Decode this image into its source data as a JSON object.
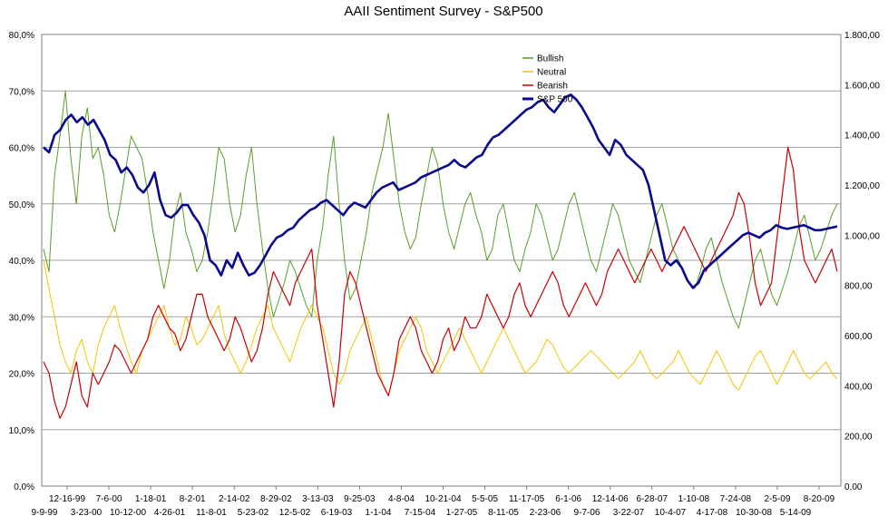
{
  "chart_data": {
    "type": "line",
    "title": "AAII Sentiment Survey - S&P500",
    "y_left": {
      "min": 0,
      "max": 80,
      "unit": "%",
      "ticks": [
        "0,0%",
        "10,0%",
        "20,0%",
        "30,0%",
        "40,0%",
        "50,0%",
        "60,0%",
        "70,0%",
        "80,0%"
      ]
    },
    "y_right": {
      "min": 0,
      "max": 1800,
      "ticks": [
        "0,00",
        "200,00",
        "400,00",
        "600,00",
        "800,00",
        "1.000,00",
        "1.200,00",
        "1.400,00",
        "1.600,00",
        "1.800,00"
      ]
    },
    "x_ticks_upper": [
      "12-16-99",
      "7-6-00",
      "1-18-01",
      "8-2-01",
      "2-14-02",
      "8-29-02",
      "3-13-03",
      "9-25-03",
      "4-8-04",
      "10-21-04",
      "5-5-05",
      "11-17-05",
      "6-1-06",
      "12-14-06",
      "6-28-07",
      "1-10-08",
      "7-24-08",
      "2-5-09",
      "8-20-09"
    ],
    "x_ticks_lower": [
      "9-9-99",
      "3-23-00",
      "10-12-00",
      "4-26-01",
      "11-8-01",
      "5-23-02",
      "12-5-02",
      "6-19-03",
      "1-1-04",
      "7-15-04",
      "1-27-05",
      "8-11-05",
      "2-23-06",
      "9-7-06",
      "3-22-07",
      "10-4-07",
      "4-17-08",
      "10-30-08",
      "5-14-09"
    ],
    "legend_position": "top-right",
    "series": [
      {
        "name": "Bullish",
        "color": "#5a9e28",
        "axis": "left",
        "width": 1,
        "values": [
          42,
          38,
          55,
          62,
          70,
          58,
          50,
          62,
          67,
          58,
          60,
          55,
          48,
          45,
          50,
          56,
          62,
          60,
          58,
          52,
          45,
          40,
          35,
          40,
          48,
          52,
          45,
          42,
          38,
          40,
          45,
          52,
          60,
          58,
          50,
          45,
          48,
          55,
          60,
          50,
          42,
          35,
          30,
          33,
          36,
          40,
          38,
          35,
          32,
          30,
          40,
          46,
          55,
          62,
          50,
          40,
          33,
          35,
          40,
          45,
          52,
          56,
          60,
          66,
          58,
          50,
          45,
          42,
          44,
          50,
          55,
          60,
          57,
          50,
          45,
          42,
          46,
          50,
          52,
          48,
          45,
          40,
          42,
          48,
          50,
          45,
          40,
          38,
          42,
          45,
          50,
          48,
          44,
          40,
          42,
          46,
          50,
          52,
          48,
          44,
          40,
          38,
          42,
          46,
          50,
          48,
          44,
          40,
          38,
          36,
          40,
          44,
          48,
          50,
          46,
          42,
          40,
          38,
          36,
          35,
          38,
          42,
          44,
          40,
          36,
          33,
          30,
          28,
          32,
          36,
          40,
          42,
          38,
          34,
          32,
          35,
          38,
          42,
          46,
          48,
          44,
          40,
          42,
          45,
          48,
          50
        ]
      },
      {
        "name": "Neutral",
        "color": "#f5c400",
        "axis": "left",
        "width": 1,
        "values": [
          40,
          35,
          30,
          25,
          22,
          20,
          24,
          26,
          22,
          20,
          25,
          28,
          30,
          32,
          28,
          25,
          22,
          20,
          24,
          26,
          28,
          30,
          32,
          28,
          25,
          26,
          30,
          28,
          25,
          26,
          28,
          30,
          32,
          27,
          24,
          22,
          20,
          22,
          25,
          28,
          30,
          32,
          28,
          26,
          24,
          22,
          25,
          28,
          30,
          32,
          30,
          28,
          24,
          20,
          18,
          20,
          24,
          26,
          28,
          30,
          26,
          22,
          18,
          16,
          20,
          24,
          26,
          28,
          30,
          28,
          24,
          22,
          20,
          22,
          24,
          26,
          28,
          26,
          24,
          22,
          20,
          22,
          24,
          26,
          28,
          26,
          24,
          22,
          20,
          21,
          22,
          24,
          26,
          25,
          23,
          21,
          20,
          21,
          22,
          23,
          24,
          23,
          22,
          21,
          20,
          19,
          20,
          21,
          22,
          24,
          22,
          20,
          19,
          20,
          21,
          22,
          24,
          22,
          20,
          19,
          18,
          20,
          22,
          24,
          22,
          20,
          18,
          17,
          19,
          21,
          23,
          24,
          22,
          20,
          18,
          20,
          22,
          24,
          22,
          20,
          19,
          20,
          21,
          22,
          20,
          19
        ]
      },
      {
        "name": "Bearish",
        "color": "#c80000",
        "axis": "left",
        "width": 1.2,
        "values": [
          22,
          20,
          15,
          12,
          14,
          18,
          22,
          16,
          14,
          20,
          18,
          20,
          22,
          25,
          24,
          22,
          20,
          22,
          24,
          26,
          30,
          32,
          30,
          28,
          27,
          24,
          26,
          30,
          34,
          34,
          30,
          28,
          26,
          24,
          26,
          30,
          28,
          25,
          22,
          24,
          28,
          34,
          38,
          36,
          34,
          32,
          36,
          38,
          40,
          42,
          32,
          26,
          20,
          14,
          22,
          34,
          38,
          36,
          32,
          28,
          24,
          20,
          18,
          16,
          20,
          26,
          28,
          30,
          28,
          24,
          22,
          20,
          22,
          26,
          28,
          24,
          26,
          30,
          28,
          28,
          30,
          34,
          32,
          30,
          28,
          30,
          34,
          36,
          32,
          30,
          32,
          34,
          36,
          38,
          36,
          32,
          30,
          32,
          34,
          36,
          34,
          32,
          34,
          38,
          40,
          42,
          40,
          38,
          36,
          38,
          40,
          42,
          40,
          38,
          40,
          42,
          44,
          46,
          44,
          42,
          40,
          38,
          40,
          42,
          44,
          46,
          48,
          52,
          50,
          44,
          36,
          32,
          34,
          36,
          44,
          52,
          60,
          56,
          46,
          40,
          38,
          36,
          38,
          40,
          42,
          38
        ]
      },
      {
        "name": "S&P 500",
        "color": "#0a0a8c",
        "axis": "right",
        "width": 2.6,
        "values": [
          1350,
          1330,
          1400,
          1420,
          1460,
          1480,
          1450,
          1470,
          1440,
          1460,
          1420,
          1380,
          1320,
          1300,
          1250,
          1270,
          1240,
          1190,
          1170,
          1200,
          1250,
          1140,
          1080,
          1070,
          1090,
          1120,
          1120,
          1080,
          1050,
          1000,
          900,
          880,
          840,
          900,
          870,
          930,
          880,
          840,
          850,
          880,
          920,
          960,
          990,
          1000,
          1020,
          1030,
          1060,
          1080,
          1100,
          1110,
          1130,
          1140,
          1120,
          1100,
          1080,
          1110,
          1130,
          1120,
          1110,
          1140,
          1170,
          1190,
          1200,
          1210,
          1180,
          1190,
          1200,
          1210,
          1230,
          1240,
          1250,
          1260,
          1270,
          1280,
          1300,
          1280,
          1270,
          1290,
          1310,
          1320,
          1360,
          1390,
          1400,
          1420,
          1440,
          1460,
          1480,
          1500,
          1510,
          1530,
          1540,
          1510,
          1490,
          1520,
          1550,
          1560,
          1540,
          1510,
          1470,
          1430,
          1380,
          1350,
          1320,
          1380,
          1360,
          1320,
          1300,
          1280,
          1260,
          1200,
          1100,
          1000,
          900,
          880,
          900,
          870,
          820,
          790,
          810,
          860,
          880,
          900,
          920,
          940,
          960,
          980,
          1000,
          1010,
          1000,
          990,
          1010,
          1020,
          1040,
          1030,
          1025,
          1030,
          1035,
          1040,
          1030,
          1020,
          1020,
          1025,
          1030,
          1035
        ]
      }
    ]
  }
}
